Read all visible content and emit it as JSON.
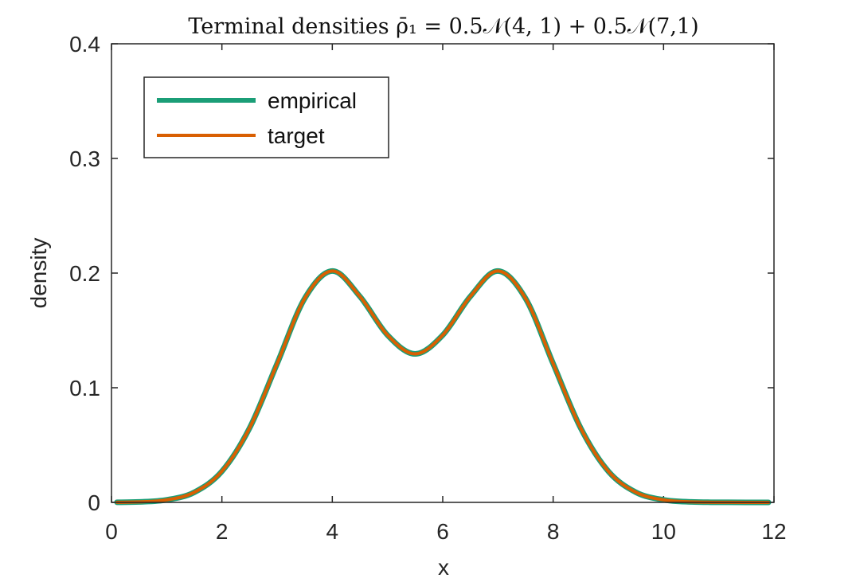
{
  "chart_data": {
    "type": "line",
    "title": "Terminal densities ρ̄₁ = 0.5𝒩(4, 1) + 0.5𝒩(7,1)",
    "xlabel": "x",
    "ylabel": "density",
    "xlim": [
      0,
      12
    ],
    "ylim": [
      0,
      0.4
    ],
    "xticks": [
      "0",
      "2",
      "4",
      "6",
      "8",
      "10",
      "12"
    ],
    "yticks": [
      "0",
      "0.1",
      "0.2",
      "0.3",
      "0.4"
    ],
    "grid": false,
    "legend_position": "top-left",
    "x": [
      0.1,
      0.5,
      1.0,
      1.5,
      2.0,
      2.5,
      3.0,
      3.5,
      4.0,
      4.5,
      5.0,
      5.5,
      6.0,
      6.5,
      7.0,
      7.5,
      8.0,
      8.5,
      9.0,
      9.5,
      10.0,
      10.5,
      11.0,
      11.5,
      11.9
    ],
    "series": [
      {
        "name": "empirical",
        "color": "#1b9e77",
        "values": [
          0.0001,
          0.0004,
          0.0022,
          0.0088,
          0.0271,
          0.0647,
          0.121,
          0.1779,
          0.2018,
          0.1796,
          0.1459,
          0.1295,
          0.1459,
          0.1796,
          0.2018,
          0.1779,
          0.121,
          0.0647,
          0.0271,
          0.0088,
          0.0022,
          0.0004,
          0.0001,
          0.0,
          0.0
        ]
      },
      {
        "name": "target",
        "color": "#d95f02",
        "values": [
          0.0001,
          0.0004,
          0.0022,
          0.0088,
          0.0271,
          0.0647,
          0.121,
          0.1779,
          0.2018,
          0.1796,
          0.1459,
          0.1295,
          0.1459,
          0.1796,
          0.2018,
          0.1779,
          0.121,
          0.0647,
          0.0271,
          0.0088,
          0.0022,
          0.0004,
          0.0001,
          0.0,
          0.0
        ]
      }
    ]
  }
}
